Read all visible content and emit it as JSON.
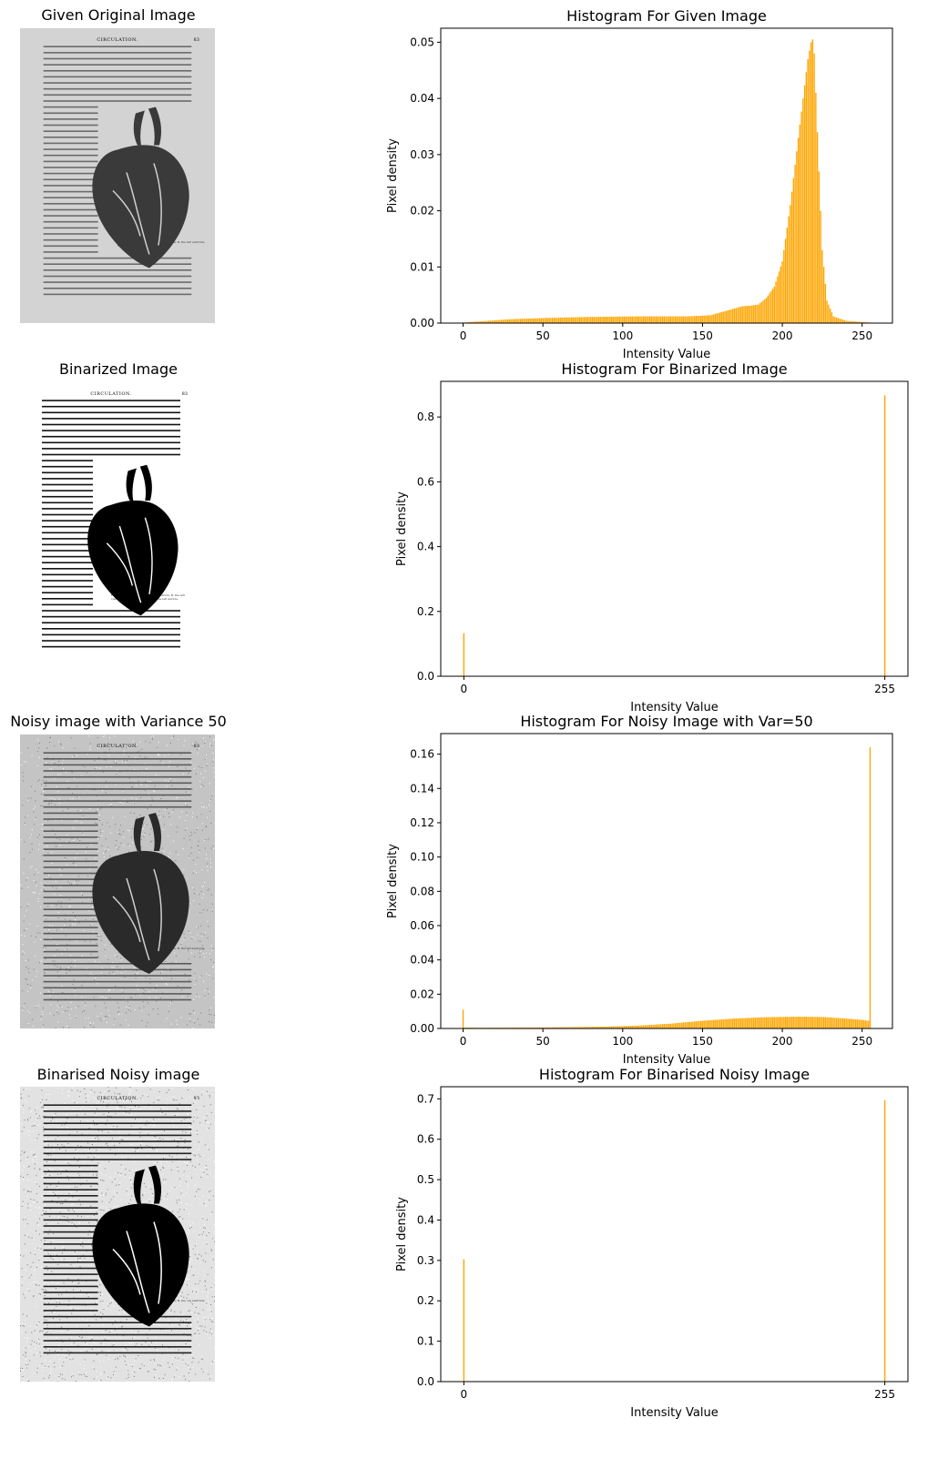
{
  "panels": [
    {
      "image_title": "Given Original Image",
      "page_head": "CIRCULATION.",
      "page_num": "83",
      "caption": "Fig. 36.—The Heart: A, the right ventricle; B, the left ventricle; C, the right auricle; D, the left auricle."
    },
    {
      "image_title": "Binarized Image",
      "page_head": "CIRCULATION.",
      "page_num": "83",
      "caption": "Fig. 36.—The Heart: A, the right ventricle; B, the left ventricle; C, the right auricle; D, the left auricle."
    },
    {
      "image_title": "Noisy image with Variance 50",
      "page_head": "CIRCULATION.",
      "page_num": "83",
      "caption": "Fig. 36.—The Heart: A, the right ventricle; B, the left ventricle; C, the right auricle; D, the left auricle."
    },
    {
      "image_title": "Binarised Noisy image",
      "page_head": "CIRCULATION.",
      "page_num": "83",
      "caption": "Fig. 36.—The Heart: A, the right ventricle; B, the left ventricle; C, the right auricle; D, the left auricle."
    }
  ],
  "colors": {
    "bar": "#ffa500",
    "axis": "#000000"
  },
  "chart_data": [
    {
      "type": "bar",
      "title": "Histogram For Given Image",
      "xlabel": "Intensity Value",
      "ylabel": "Pixel density",
      "xlim": [
        -14,
        269
      ],
      "ylim": [
        0,
        0.0525
      ],
      "xticks": [
        0,
        50,
        100,
        150,
        200,
        250
      ],
      "yticks": [
        0.0,
        0.01,
        0.02,
        0.03,
        0.04,
        0.05
      ],
      "ytick_labels": [
        "0.00",
        "0.01",
        "0.02",
        "0.03",
        "0.04",
        "0.05"
      ],
      "bins": "0-255",
      "profile": [
        [
          0,
          0.0001
        ],
        [
          5,
          0.0002
        ],
        [
          10,
          0.0003
        ],
        [
          20,
          0.0005
        ],
        [
          30,
          0.0007
        ],
        [
          50,
          0.0009
        ],
        [
          80,
          0.0011
        ],
        [
          110,
          0.0012
        ],
        [
          140,
          0.0012
        ],
        [
          155,
          0.0014
        ],
        [
          165,
          0.0022
        ],
        [
          175,
          0.003
        ],
        [
          180,
          0.0031
        ],
        [
          185,
          0.0033
        ],
        [
          190,
          0.0045
        ],
        [
          195,
          0.0065
        ],
        [
          200,
          0.011
        ],
        [
          205,
          0.021
        ],
        [
          210,
          0.033
        ],
        [
          213,
          0.04
        ],
        [
          216,
          0.047
        ],
        [
          218,
          0.05
        ],
        [
          219,
          0.0505
        ],
        [
          220,
          0.048
        ],
        [
          222,
          0.034
        ],
        [
          225,
          0.013
        ],
        [
          228,
          0.004
        ],
        [
          232,
          0.0012
        ],
        [
          240,
          0.0004
        ],
        [
          250,
          0.0002
        ],
        [
          255,
          0.0001
        ]
      ]
    },
    {
      "type": "bar",
      "title": "Histogram For Binarized Image",
      "xlabel": "Intensity Value",
      "ylabel": "Pixel density",
      "xlim": [
        -14,
        269
      ],
      "ylim": [
        0,
        0.91
      ],
      "xticks": [
        0,
        255
      ],
      "yticks": [
        0.0,
        0.2,
        0.4,
        0.6,
        0.8
      ],
      "ytick_labels": [
        "0.0",
        "0.2",
        "0.4",
        "0.6",
        "0.8"
      ],
      "bins": "0-255",
      "spikes": [
        [
          0,
          0.133
        ],
        [
          255,
          0.867
        ]
      ]
    },
    {
      "type": "bar",
      "title": "Histogram For Noisy Image with Var=50",
      "xlabel": "Intensity Value",
      "ylabel": "Pixel density",
      "xlim": [
        -14,
        269
      ],
      "ylim": [
        0,
        0.172
      ],
      "xticks": [
        0,
        50,
        100,
        150,
        200,
        250
      ],
      "yticks": [
        0.0,
        0.02,
        0.04,
        0.06,
        0.08,
        0.1,
        0.12,
        0.14,
        0.16
      ],
      "ytick_labels": [
        "0.00",
        "0.02",
        "0.04",
        "0.06",
        "0.08",
        "0.10",
        "0.12",
        "0.14",
        "0.16"
      ],
      "bins": "0-255",
      "profile": [
        [
          1,
          0.0005
        ],
        [
          10,
          0.0004
        ],
        [
          30,
          0.0005
        ],
        [
          50,
          0.0006
        ],
        [
          70,
          0.0008
        ],
        [
          90,
          0.0011
        ],
        [
          110,
          0.0017
        ],
        [
          130,
          0.0028
        ],
        [
          150,
          0.0045
        ],
        [
          170,
          0.0058
        ],
        [
          190,
          0.0066
        ],
        [
          210,
          0.0069
        ],
        [
          225,
          0.0067
        ],
        [
          240,
          0.0058
        ],
        [
          250,
          0.005
        ],
        [
          254,
          0.0045
        ]
      ],
      "spikes": [
        [
          0,
          0.011
        ],
        [
          255,
          0.164
        ]
      ]
    },
    {
      "type": "bar",
      "title": "Histogram For Binarised Noisy Image",
      "xlabel": "Intensity Value",
      "ylabel": "Pixel density",
      "xlim": [
        -14,
        269
      ],
      "ylim": [
        0,
        0.73
      ],
      "xticks": [
        0,
        255
      ],
      "yticks": [
        0.0,
        0.1,
        0.2,
        0.3,
        0.4,
        0.5,
        0.6,
        0.7
      ],
      "ytick_labels": [
        "0.0",
        "0.1",
        "0.2",
        "0.3",
        "0.4",
        "0.5",
        "0.6",
        "0.7"
      ],
      "bins": "0-255",
      "spikes": [
        [
          0,
          0.303
        ],
        [
          255,
          0.697
        ]
      ]
    }
  ]
}
